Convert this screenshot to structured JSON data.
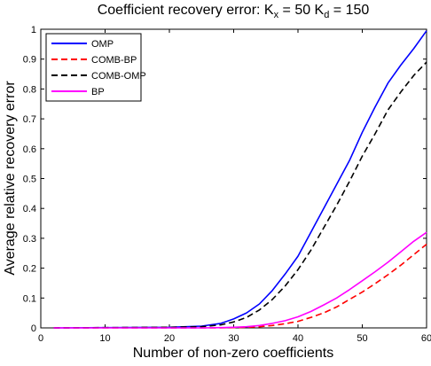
{
  "chart_data": {
    "type": "line",
    "title": {
      "main": "Coefficient recovery error: K",
      "sub1": "x",
      "mid": " = 50 K",
      "sub2": "d",
      "end": " = 150"
    },
    "xlabel": "Number of non-zero coefficients",
    "ylabel": "Average relative recovery error",
    "xlim": [
      0,
      60
    ],
    "ylim": [
      0,
      1
    ],
    "xticks": [
      0,
      10,
      20,
      30,
      40,
      50,
      60
    ],
    "xtick_labels": [
      "0",
      "10",
      "20",
      "30",
      "40",
      "50",
      "60"
    ],
    "yticks": [
      0,
      0.1,
      0.2,
      0.3,
      0.4,
      0.5,
      0.6,
      0.7,
      0.8,
      0.9,
      1
    ],
    "ytick_labels": [
      "0",
      "0.1",
      "0.2",
      "0.3",
      "0.4",
      "0.5",
      "0.6",
      "0.7",
      "0.8",
      "0.9",
      "1"
    ],
    "grid": false,
    "legend_position": "top-left",
    "x": [
      2,
      10,
      20,
      25,
      28,
      30,
      32,
      34,
      36,
      38,
      40,
      42,
      44,
      46,
      48,
      50,
      52,
      54,
      56,
      58,
      60
    ],
    "series": [
      {
        "name": "OMP",
        "color": "#0000ff",
        "dash": "solid",
        "values": [
          0,
          0.001,
          0.002,
          0.006,
          0.015,
          0.03,
          0.05,
          0.08,
          0.125,
          0.18,
          0.24,
          0.32,
          0.4,
          0.48,
          0.56,
          0.655,
          0.74,
          0.82,
          0.88,
          0.935,
          0.995
        ]
      },
      {
        "name": "COMB-BP",
        "color": "#ff0000",
        "dash": "dashed",
        "values": [
          0,
          0,
          0,
          0,
          0,
          0.001,
          0.002,
          0.004,
          0.008,
          0.014,
          0.022,
          0.035,
          0.05,
          0.07,
          0.095,
          0.12,
          0.148,
          0.178,
          0.21,
          0.245,
          0.28
        ]
      },
      {
        "name": "COMB-OMP",
        "color": "#000000",
        "dash": "dashed",
        "values": [
          0,
          0.001,
          0.002,
          0.004,
          0.01,
          0.02,
          0.035,
          0.06,
          0.095,
          0.14,
          0.195,
          0.26,
          0.335,
          0.41,
          0.49,
          0.575,
          0.65,
          0.73,
          0.79,
          0.845,
          0.89
        ]
      },
      {
        "name": "BP",
        "color": "#ff00ff",
        "dash": "solid",
        "values": [
          0,
          0,
          0,
          0,
          0.001,
          0.002,
          0.004,
          0.008,
          0.015,
          0.024,
          0.037,
          0.055,
          0.077,
          0.1,
          0.128,
          0.158,
          0.188,
          0.22,
          0.255,
          0.29,
          0.32
        ]
      }
    ]
  }
}
